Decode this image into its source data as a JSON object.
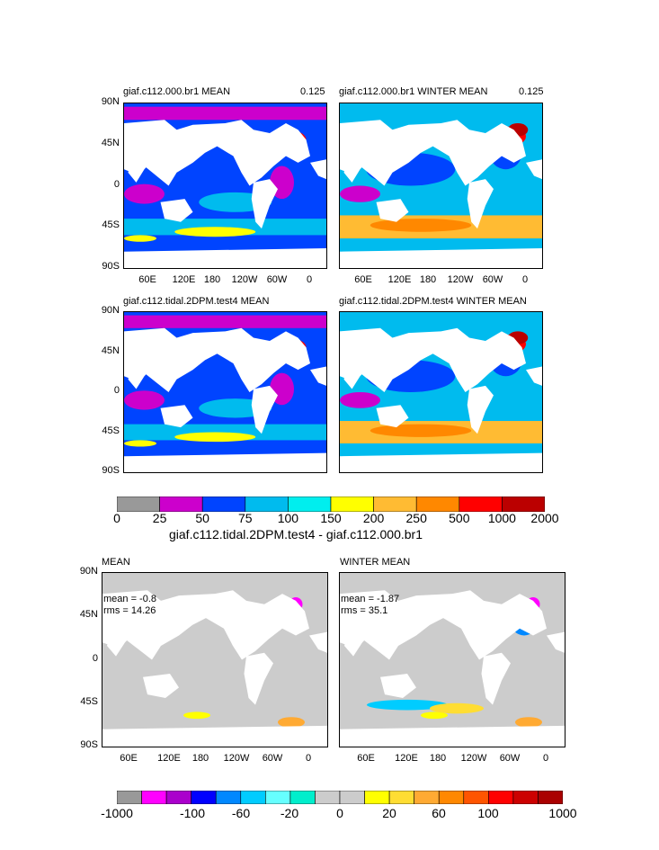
{
  "panels": [
    {
      "title": "giaf.c112.000.br1 MEAN",
      "corner": "0.125"
    },
    {
      "title": "giaf.c112.000.br1 WINTER MEAN",
      "corner": "0.125"
    },
    {
      "title": "giaf.c112.tidal.2DPM.test4 MEAN",
      "corner": ""
    },
    {
      "title": "giaf.c112.tidal.2DPM.test4 WINTER MEAN",
      "corner": ""
    },
    {
      "title": "MEAN",
      "corner": "",
      "mean": "mean = -0.8",
      "rms": "rms = 14.26"
    },
    {
      "title": "WINTER MEAN",
      "corner": "",
      "mean": "mean = -1.87",
      "rms": "rms = 35.1"
    }
  ],
  "lat_labels": [
    "90N",
    "45N",
    "0",
    "45S",
    "90S"
  ],
  "lon_labels": [
    "60E",
    "120E",
    "180",
    "120W",
    "60W",
    "0"
  ],
  "colorbar_top": {
    "labels": [
      "0",
      "25",
      "50",
      "75",
      "100",
      "150",
      "200",
      "250",
      "500",
      "1000",
      "2000"
    ],
    "colors": [
      "#999999",
      "#cc00cc",
      "#0044ff",
      "#00bbee",
      "#00eeee",
      "#ffff00",
      "#ffbb33",
      "#ff8800",
      "#ff0000",
      "#bb0000"
    ],
    "title": "giaf.c112.tidal.2DPM.test4 - giaf.c112.000.br1"
  },
  "colorbar_bottom": {
    "labels": [
      "-1000",
      "-100",
      "-60",
      "-20",
      "0",
      "20",
      "60",
      "100",
      "1000"
    ],
    "colors": [
      "#999999",
      "#ff00ff",
      "#aa00cc",
      "#0000ff",
      "#0088ff",
      "#00ccff",
      "#66ffff",
      "#00eecc",
      "#cccccc",
      "#cccccc",
      "#ffff00",
      "#ffdd33",
      "#ffaa33",
      "#ff8800",
      "#ff5500",
      "#ff0000",
      "#cc0000",
      "#aa0000"
    ]
  }
}
